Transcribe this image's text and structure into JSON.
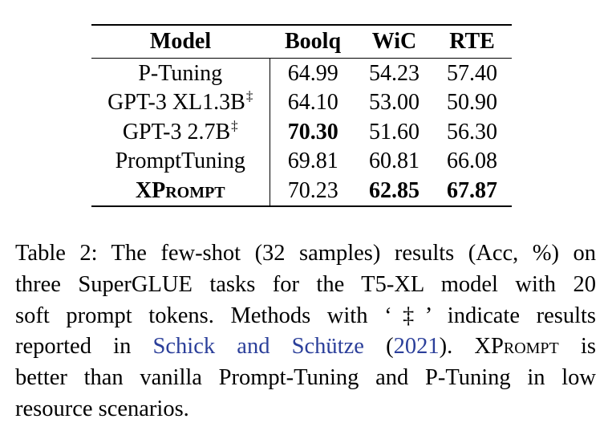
{
  "table": {
    "columns": [
      "Model",
      "Boolq",
      "WiC",
      "RTE"
    ],
    "rows": [
      {
        "model": "P-Tuning",
        "dagger": "",
        "boolq": "64.99",
        "wic": "54.23",
        "rte": "57.40"
      },
      {
        "model": "GPT-3 XL1.3B",
        "dagger": "‡",
        "boolq": "64.10",
        "wic": "53.00",
        "rte": "50.90"
      },
      {
        "model": "GPT-3 2.7B",
        "dagger": "‡",
        "boolq": "70.30",
        "wic": "51.60",
        "rte": "56.30"
      },
      {
        "model": "PromptTuning",
        "dagger": "",
        "boolq": "69.81",
        "wic": "60.81",
        "rte": "66.08"
      },
      {
        "model_first": "XP",
        "model_rest": "rompt",
        "boolq": "70.23",
        "wic": "62.85",
        "rte": "67.87"
      }
    ]
  },
  "caption": {
    "line1": "Table 2: The few-shot (32 samples) results (Acc, %) on",
    "line2": "three SuperGLUE tasks for the T5-XL model with 20",
    "line3": "soft prompt tokens. Methods with ‘‡’ indicate results",
    "line4_a": "reported in ",
    "line4_cite_author": "Schick and Schütze",
    "line4_cite_year_open": " (",
    "line4_cite_year": "2021",
    "line4_cite_year_close": ")",
    "line4_b": ". X",
    "line4_sc": "Prompt",
    "line4_c": " is",
    "line5": "better than vanilla Prompt-Tuning and P-Tuning in low",
    "line6": "resource scenarios."
  },
  "colors": {
    "text": "#000000",
    "citation": "#2b3f9a"
  }
}
